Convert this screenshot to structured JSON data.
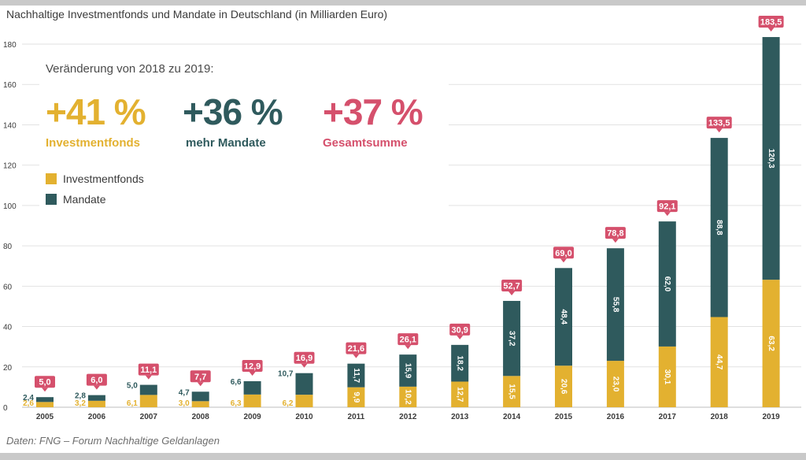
{
  "title": "Nachhaltige Investmentfonds und Mandate in Deutschland (in Milliarden Euro)",
  "source": "Daten: FNG – Forum Nachhaltige Geldanlagen",
  "colors": {
    "fonds": "#e3b130",
    "mandate": "#2f5a5d",
    "total": "#d5506c",
    "text": "#3a3a3a",
    "grid": "#e2e2e2"
  },
  "change_box": {
    "heading": "Veränderung von 2018 zu 2019:",
    "items": [
      {
        "value": "+41 %",
        "label": "Investmentfonds",
        "color": "#e3b130"
      },
      {
        "value": "+36 %",
        "label": "mehr Mandate",
        "color": "#2f5a5d"
      },
      {
        "value": "+37 %",
        "label": "Gesamtsumme",
        "color": "#d5506c"
      }
    ]
  },
  "chart_data": {
    "type": "bar",
    "stacked": true,
    "categories": [
      "2005",
      "2006",
      "2007",
      "2008",
      "2009",
      "2010",
      "2011",
      "2012",
      "2013",
      "2014",
      "2015",
      "2016",
      "2017",
      "2018",
      "2019"
    ],
    "series": [
      {
        "name": "Investmentfonds",
        "values": [
          2.6,
          3.2,
          6.1,
          3.0,
          6.3,
          6.2,
          9.9,
          10.2,
          12.7,
          15.5,
          20.6,
          23.0,
          30.1,
          44.7,
          63.2
        ],
        "labels": [
          "2,6",
          "3,2",
          "6,1",
          "3,0",
          "6,3",
          "6,2",
          "9,9",
          "10,2",
          "12,7",
          "15,5",
          "20,6",
          "23,0",
          "30,1",
          "44,7",
          "63,2"
        ]
      },
      {
        "name": "Mandate",
        "values": [
          2.4,
          2.8,
          5.0,
          4.7,
          6.6,
          10.7,
          11.7,
          15.9,
          18.2,
          37.2,
          48.4,
          55.8,
          62.0,
          88.8,
          120.3
        ],
        "labels": [
          "2,4",
          "2,8",
          "5,0",
          "4,7",
          "6,6",
          "10,7",
          "11,7",
          "15,9",
          "18,2",
          "37,2",
          "48,4",
          "55,8",
          "62,0",
          "88,8",
          "120,3"
        ]
      }
    ],
    "totals": [
      5.0,
      6.0,
      11.1,
      7.7,
      12.9,
      16.9,
      21.6,
      26.1,
      30.9,
      52.7,
      69.0,
      78.8,
      92.1,
      133.5,
      183.5
    ],
    "total_labels": [
      "5,0",
      "6,0",
      "11,1",
      "7,7",
      "12,9",
      "16,9",
      "21,6",
      "26,1",
      "30,9",
      "52,7",
      "69,0",
      "78,8",
      "92,1",
      "133,5",
      "183,5"
    ],
    "ylim": [
      0,
      185
    ],
    "yticks": [
      0,
      20,
      40,
      60,
      80,
      100,
      120,
      140,
      160,
      180
    ],
    "grid": true,
    "legend_position": "left",
    "title": "Nachhaltige Investmentfonds und Mandate in Deutschland (in Milliarden Euro)"
  }
}
